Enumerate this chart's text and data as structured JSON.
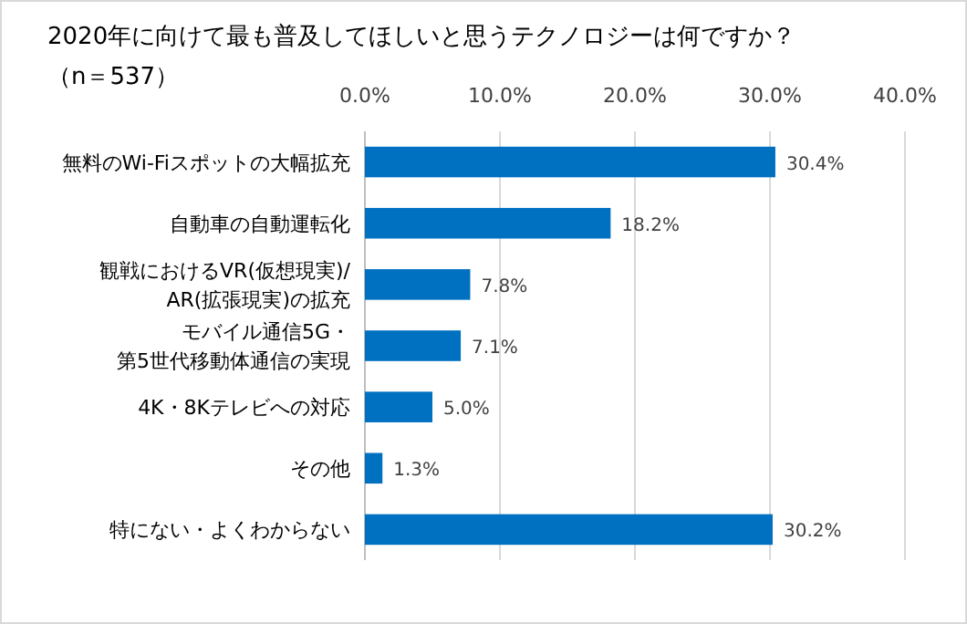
{
  "chart_data": {
    "type": "bar",
    "orientation": "horizontal",
    "title": "2020年に向けて最も普及してほしいと思うテクノロジーは何ですか？",
    "subtitle": "（n＝537）",
    "categories": [
      "無料のWi-Fiスポットの大幅拡充",
      "自動車の自動運転化",
      "観戦におけるVR(仮想現実)/AR(拡張現実)の拡充",
      "モバイル通信5G・第5世代移動体通信の実現",
      "4K・8Kテレビへの対応",
      "その他",
      "特にない・よくわからない"
    ],
    "values": [
      30.4,
      18.2,
      7.8,
      7.1,
      5.0,
      1.3,
      30.2
    ],
    "value_labels": [
      "30.4%",
      "18.2%",
      "7.8%",
      "7.1%",
      "5.0%",
      "1.3%",
      "30.2%"
    ],
    "color": "#0070c0",
    "xlim": [
      0,
      40
    ],
    "xticks": [
      {
        "value": 0,
        "label": "0.0%"
      },
      {
        "value": 10,
        "label": "10.0%"
      },
      {
        "value": 20,
        "label": "20.0%"
      },
      {
        "value": 30,
        "label": "30.0%"
      },
      {
        "value": 40,
        "label": "40.0%"
      }
    ],
    "grid": "x"
  }
}
